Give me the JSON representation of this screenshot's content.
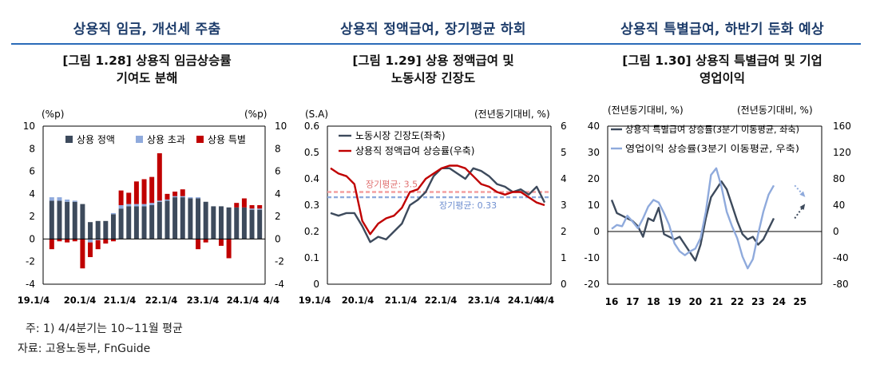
{
  "headers": {
    "h1": "상용직 임금, 개선세 주춤",
    "h2": "상용직 정액급여, 장기평균 하회",
    "h3": "상용직 특별급여, 하반기 둔화 예상"
  },
  "figures": {
    "f1": {
      "line1": "[그림 1.28] 상용직 임금상승률",
      "line2": "기여도 분해"
    },
    "f2": {
      "line1": "[그림 1.29] 상용 정액급여 및",
      "line2": "노동시장 긴장도"
    },
    "f3": {
      "line1": "[그림 1.30] 상용직 특별급여 및 기업",
      "line2": "영업이익"
    }
  },
  "notes": {
    "footnote": "주: 1) 4/4분기는 10~11월 평균",
    "source": "자료: 고용노동부, FnGuide"
  },
  "chart_data": [
    {
      "type": "bar",
      "stacked": true,
      "y_unit_left": "(%p)",
      "y_unit_right": "(%p)",
      "ylim": [
        -4,
        10
      ],
      "yticks": [
        -4,
        -2,
        0,
        2,
        4,
        6,
        8,
        10
      ],
      "xtick_labels": [
        "19.1/4",
        "20.1/4",
        "21.1/4",
        "22.1/4",
        "23.1/4",
        "24.1/4",
        "4/4"
      ],
      "legend_position": "top",
      "colors": {
        "regular": "#3d4a5c",
        "overtime": "#8faadc",
        "special": "#c00000"
      },
      "series": [
        {
          "name": "상용 정액",
          "key": "regular",
          "values": [
            3.4,
            3.4,
            3.3,
            3.3,
            3.1,
            1.5,
            1.6,
            1.6,
            2.2,
            2.7,
            2.9,
            2.9,
            2.9,
            3.0,
            3.3,
            3.4,
            3.7,
            3.7,
            3.6,
            3.6,
            3.3,
            2.9,
            2.9,
            2.8,
            2.8,
            2.8,
            2.6,
            2.6
          ]
        },
        {
          "name": "상용 초과",
          "key": "overtime",
          "values": [
            0.3,
            0.3,
            0.2,
            0.1,
            0.0,
            -0.3,
            -0.1,
            0.0,
            0.1,
            0.3,
            0.2,
            0.2,
            0.2,
            0.2,
            0.1,
            0.1,
            0.1,
            0.1,
            0.1,
            0.1,
            0.0,
            0.0,
            0.0,
            0.0,
            0.0,
            0.0,
            0.1,
            0.1
          ]
        },
        {
          "name": "상용 특별",
          "key": "special",
          "values": [
            -0.9,
            -0.2,
            -0.3,
            -0.2,
            -2.6,
            -1.3,
            -0.8,
            -0.4,
            -0.2,
            1.3,
            1.0,
            2.0,
            2.2,
            2.3,
            4.2,
            0.5,
            0.4,
            0.6,
            0.0,
            -0.9,
            -0.3,
            0.0,
            -0.6,
            -1.7,
            0.4,
            0.8,
            0.3,
            0.3
          ]
        }
      ]
    },
    {
      "type": "line",
      "y_unit_left": "(S.A)",
      "y_unit_right": "(전년동기대비, %)",
      "ylim_left": [
        0,
        0.6
      ],
      "yticks_left": [
        0,
        0.1,
        0.2,
        0.3,
        0.4,
        0.5,
        0.6
      ],
      "ylim_right": [
        0,
        6
      ],
      "yticks_right": [
        0,
        1,
        2,
        3,
        4,
        5,
        6
      ],
      "xtick_labels": [
        "19.1/4",
        "20.1/4",
        "21.1/4",
        "22.1/4",
        "23.1/4",
        "24.1/4",
        "4/4"
      ],
      "legend_position": "top-left",
      "series": [
        {
          "name": "노동시장 긴장도(좌축)",
          "axis": "left",
          "color": "#3d4a5c",
          "values": [
            0.27,
            0.26,
            0.27,
            0.27,
            0.22,
            0.16,
            0.18,
            0.17,
            0.2,
            0.23,
            0.3,
            0.32,
            0.35,
            0.41,
            0.44,
            0.44,
            0.42,
            0.4,
            0.44,
            0.43,
            0.41,
            0.38,
            0.37,
            0.35,
            0.36,
            0.34,
            0.37,
            0.31
          ]
        },
        {
          "name": "상용직 정액급여 상승률(우축)",
          "axis": "right",
          "color": "#c00000",
          "values": [
            4.4,
            4.2,
            4.1,
            3.8,
            2.4,
            1.9,
            2.3,
            2.5,
            2.6,
            2.9,
            3.5,
            3.6,
            4.0,
            4.2,
            4.4,
            4.5,
            4.5,
            4.4,
            4.1,
            3.8,
            3.7,
            3.5,
            3.4,
            3.5,
            3.5,
            3.3,
            3.1,
            3.0
          ]
        }
      ],
      "reference_lines": [
        {
          "label": "장기평균: 3.5",
          "axis": "right",
          "value": 3.5,
          "color": "#f4a0a0"
        },
        {
          "label": "장기평균: 0.33",
          "axis": "left",
          "value": 0.33,
          "color": "#8faadc"
        }
      ]
    },
    {
      "type": "line",
      "y_unit_left": "(전년동기대비, %)",
      "y_unit_right": "(전년동기대비, %)",
      "ylim_left": [
        -20,
        40
      ],
      "yticks_left": [
        -20,
        -10,
        0,
        10,
        20,
        30,
        40
      ],
      "ylim_right": [
        -80,
        160
      ],
      "yticks_right": [
        -80,
        -40,
        0,
        40,
        80,
        120,
        160
      ],
      "xtick_labels": [
        "16",
        "17",
        "18",
        "19",
        "20",
        "21",
        "22",
        "23",
        "24",
        "25"
      ],
      "legend_position": "top-left",
      "series": [
        {
          "name": "상용직 특별급여 상승률(3분기 이동평균, 좌축)",
          "axis": "left",
          "color": "#3d4a5c",
          "x": [
            16.0,
            16.25,
            16.5,
            16.75,
            17.0,
            17.25,
            17.5,
            17.75,
            18.0,
            18.25,
            18.5,
            18.75,
            19.0,
            19.25,
            19.5,
            19.75,
            20.0,
            20.25,
            20.5,
            20.75,
            21.0,
            21.25,
            21.5,
            21.75,
            22.0,
            22.25,
            22.5,
            22.75,
            23.0,
            23.25,
            23.5,
            23.75,
            24.0,
            24.25,
            24.5,
            24.75
          ],
          "values": [
            12,
            7,
            6,
            5,
            4,
            2,
            -2,
            5,
            4,
            9,
            -1,
            -2,
            -3,
            -2,
            -5,
            -8,
            -11,
            -5,
            5,
            13,
            16,
            19,
            16,
            10,
            4,
            -1,
            -3,
            -2,
            -5,
            -3,
            1,
            5,
            null,
            null,
            null,
            null
          ]
        },
        {
          "name": "영업이익 상승률(3분기 이동평균, 우축)",
          "axis": "right",
          "color": "#8faadc",
          "x": [
            16.0,
            16.25,
            16.5,
            16.75,
            17.0,
            17.25,
            17.5,
            17.75,
            18.0,
            18.25,
            18.5,
            18.75,
            19.0,
            19.25,
            19.5,
            19.75,
            20.0,
            20.25,
            20.5,
            20.75,
            21.0,
            21.25,
            21.5,
            21.75,
            22.0,
            22.25,
            22.5,
            22.75,
            23.0,
            23.25,
            23.5,
            23.75,
            24.0,
            24.25,
            24.5,
            24.75
          ],
          "values": [
            4,
            10,
            8,
            24,
            15,
            5,
            20,
            38,
            48,
            44,
            28,
            10,
            -18,
            -30,
            -36,
            -30,
            -26,
            -10,
            30,
            86,
            96,
            68,
            30,
            8,
            -10,
            -38,
            -56,
            -42,
            -4,
            30,
            56,
            70,
            null,
            null,
            null,
            null
          ]
        }
      ],
      "projections": [
        {
          "axis": "left",
          "color": "#3d4a5c",
          "from": [
            24.75,
            5
          ],
          "to": [
            25.2,
            10
          ]
        },
        {
          "axis": "right",
          "color": "#8faadc",
          "from": [
            24.75,
            70
          ],
          "to": [
            25.2,
            54
          ]
        }
      ]
    }
  ]
}
